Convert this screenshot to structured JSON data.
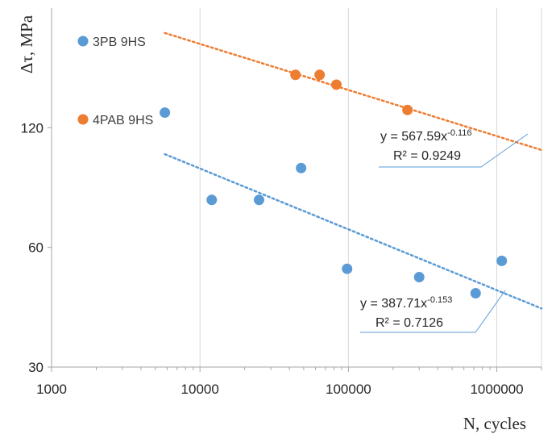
{
  "chart_data": {
    "type": "scatter",
    "xlabel": "N, cycles",
    "ylabel": "Δτ, MPa",
    "x_scale": "log",
    "y_scale": "log",
    "xlim": [
      1000,
      2000000
    ],
    "ylim": [
      30,
      240
    ],
    "x_ticks": [
      1000,
      10000,
      100000,
      1000000
    ],
    "x_tick_labels": [
      "1000",
      "10000",
      "100000",
      "1000000"
    ],
    "y_ticks": [
      30,
      60,
      120
    ],
    "y_tick_labels": [
      "30",
      "60",
      "120"
    ],
    "grid": "vertical major",
    "legend_position": "top-left",
    "series": [
      {
        "name": "3PB 9HS",
        "color": "#5b9bd5",
        "x": [
          5800,
          12000,
          25000,
          48000,
          98000,
          300000,
          720000,
          1080000
        ],
        "y": [
          131,
          79,
          79,
          95,
          53,
          50.5,
          46,
          55.5
        ],
        "trendline": {
          "equation": "y = 387.71x",
          "exponent": "-0.153",
          "r2": "R² = 0.7126",
          "coef": 387.71,
          "power": -0.153,
          "x_range": [
            5800,
            2000000
          ]
        }
      },
      {
        "name": "4PAB 9HS",
        "color": "#ed7d31",
        "x": [
          44000,
          64000,
          83000,
          250000
        ],
        "y": [
          163,
          163,
          154,
          133
        ],
        "trendline": {
          "equation": "y = 567.59x",
          "exponent": "-0.116",
          "r2": "R² = 0.9249",
          "coef": 567.59,
          "power": -0.116,
          "x_range": [
            5800,
            2000000
          ]
        }
      }
    ]
  }
}
